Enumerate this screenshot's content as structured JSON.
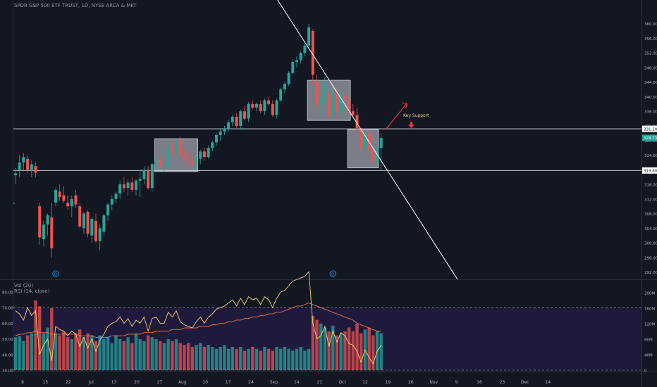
{
  "header": {
    "symbol": "SPDR S&P 500 ETF TRUST, 1D, NYSE ARCA & MKT",
    "vol_label": "Vol (20)",
    "rsi_label": "RSI (14, close)"
  },
  "annotation": {
    "key_support": "Key Support"
  },
  "colors": {
    "background": "#131722",
    "up": "#26a69a",
    "down": "#ef5350",
    "rsi_line": "#f7d56b",
    "rsi_ma_line": "#e8734d",
    "rsi_band": "#2a1e52",
    "levels": "#e0e3eb",
    "box": "#d1d4dc",
    "arrow": "#f23645"
  },
  "chart_data": [
    {
      "type": "candlestick",
      "title": "SPDR S&P 500 ETF TRUST, 1D, NYSE ARCA & MKT",
      "ylim": [
        290,
        363
      ],
      "price_ticks": [
        292,
        296,
        300,
        304,
        308,
        312,
        316,
        320,
        324,
        328,
        332,
        336,
        340,
        344,
        348,
        352,
        356,
        360
      ],
      "x_ticks": [
        "8",
        "15",
        "22",
        "Jul",
        "13",
        "20",
        "27",
        "Aug",
        "10",
        "17",
        "24",
        "Sep",
        "14",
        "21",
        "Oct",
        "12",
        "19",
        "26",
        "Nov",
        "9",
        "16",
        "23",
        "Dec",
        "14"
      ],
      "horizontal_levels": [
        {
          "value": 331.2,
          "label": "331.20"
        },
        {
          "value": 319.8,
          "label": "319.80"
        }
      ],
      "last_price": {
        "value": 328.73,
        "label": "328.73"
      },
      "ohlc": [
        [
          318.5,
          320.5,
          316.0,
          319.0
        ],
        [
          320.0,
          324.0,
          318.0,
          322.0
        ],
        [
          322.0,
          324.5,
          320.0,
          323.5
        ],
        [
          323.0,
          324.0,
          319.0,
          320.0
        ],
        [
          320.0,
          322.5,
          318.0,
          321.5
        ],
        [
          321.0,
          322.0,
          318.0,
          319.2
        ],
        [
          310.0,
          311.0,
          299.5,
          301.5
        ],
        [
          301.0,
          306.0,
          299.0,
          305.0
        ],
        [
          305.0,
          308.0,
          302.0,
          307.5
        ],
        [
          307.0,
          311.0,
          296.0,
          298.5
        ],
        [
          311.0,
          315.0,
          310.0,
          314.5
        ],
        [
          314.0,
          316.0,
          311.5,
          312.5
        ],
        [
          313.0,
          315.5,
          311.0,
          311.5
        ],
        [
          311.0,
          313.0,
          309.0,
          310.0
        ],
        [
          310.0,
          313.0,
          307.0,
          312.0
        ],
        [
          313.0,
          314.5,
          309.5,
          310.5
        ],
        [
          310.0,
          311.0,
          304.0,
          304.5
        ],
        [
          304.0,
          308.5,
          302.5,
          308.0
        ],
        [
          308.5,
          309.0,
          301.5,
          302.5
        ],
        [
          302.0,
          307.0,
          300.0,
          306.5
        ],
        [
          306.0,
          308.0,
          300.0,
          300.5
        ],
        [
          300.5,
          305.0,
          298.0,
          304.0
        ],
        [
          303.0,
          308.0,
          302.0,
          307.5
        ],
        [
          307.5,
          311.0,
          306.0,
          310.5
        ],
        [
          310.5,
          313.0,
          309.0,
          312.0
        ],
        [
          312.0,
          314.0,
          311.0,
          313.5
        ],
        [
          313.5,
          317.0,
          312.0,
          316.0
        ],
        [
          316.0,
          318.0,
          314.0,
          315.0
        ],
        [
          315.0,
          317.5,
          313.0,
          316.5
        ],
        [
          316.5,
          318.0,
          314.0,
          314.5
        ],
        [
          314.5,
          317.5,
          313.0,
          317.0
        ],
        [
          317.0,
          320.0,
          312.5,
          317.5
        ],
        [
          317.5,
          321.0,
          316.0,
          320.0
        ],
        [
          320.0,
          321.0,
          314.5,
          315.0
        ],
        [
          315.0,
          322.0,
          314.0,
          321.5
        ],
        [
          321.5,
          323.0,
          320.0,
          322.5
        ],
        [
          322.5,
          323.5,
          320.5,
          321.0
        ],
        [
          321.0,
          322.0,
          319.5,
          321.0
        ],
        [
          321.0,
          327.0,
          320.5,
          326.0
        ],
        [
          326.0,
          328.0,
          324.0,
          325.0
        ],
        [
          325.0,
          328.5,
          323.5,
          328.0
        ],
        [
          328.0,
          329.0,
          323.0,
          324.0
        ],
        [
          324.0,
          326.0,
          322.5,
          323.0
        ],
        [
          323.0,
          325.0,
          321.0,
          322.5
        ],
        [
          322.5,
          324.0,
          321.0,
          321.5
        ],
        [
          321.5,
          324.0,
          320.0,
          323.0
        ],
        [
          323.0,
          325.5,
          321.5,
          325.0
        ],
        [
          325.0,
          326.0,
          322.5,
          323.5
        ],
        [
          323.5,
          326.5,
          323.0,
          326.0
        ],
        [
          326.0,
          328.0,
          325.0,
          327.5
        ],
        [
          327.5,
          330.0,
          326.5,
          329.5
        ],
        [
          329.5,
          331.0,
          328.0,
          330.5
        ],
        [
          330.5,
          332.0,
          329.5,
          331.0
        ],
        [
          331.0,
          333.5,
          330.5,
          333.0
        ],
        [
          333.0,
          335.0,
          332.0,
          334.5
        ],
        [
          334.5,
          335.5,
          331.5,
          332.0
        ],
        [
          332.0,
          336.5,
          331.0,
          336.0
        ],
        [
          336.0,
          337.5,
          333.5,
          334.0
        ],
        [
          334.0,
          338.5,
          333.0,
          338.0
        ],
        [
          338.0,
          339.0,
          336.5,
          337.0
        ],
        [
          337.0,
          338.5,
          336.0,
          338.0
        ],
        [
          338.0,
          339.0,
          335.5,
          336.0
        ],
        [
          336.0,
          339.5,
          335.0,
          339.0
        ],
        [
          339.0,
          340.0,
          337.5,
          338.0
        ],
        [
          338.0,
          339.0,
          334.5,
          335.0
        ],
        [
          335.0,
          339.5,
          334.0,
          339.0
        ],
        [
          339.0,
          342.5,
          338.5,
          342.0
        ],
        [
          342.0,
          344.0,
          341.0,
          343.5
        ],
        [
          343.5,
          347.0,
          343.0,
          346.5
        ],
        [
          346.5,
          350.0,
          346.0,
          349.5
        ],
        [
          349.5,
          351.0,
          348.0,
          350.0
        ],
        [
          350.0,
          352.5,
          349.0,
          352.0
        ],
        [
          352.0,
          354.5,
          351.0,
          354.0
        ],
        [
          354.0,
          360.0,
          353.5,
          359.0
        ],
        [
          358.0,
          358.5,
          343.5,
          346.0
        ],
        [
          344.0,
          346.0,
          337.0,
          338.0
        ],
        [
          338.0,
          341.0,
          333.5,
          339.5
        ],
        [
          339.0,
          345.5,
          336.0,
          344.0
        ],
        [
          341.0,
          341.5,
          334.5,
          335.0
        ],
        [
          335.0,
          342.0,
          334.0,
          341.0
        ],
        [
          341.0,
          342.0,
          334.0,
          336.0
        ],
        [
          336.0,
          341.5,
          335.0,
          340.5
        ],
        [
          340.5,
          341.5,
          338.0,
          339.0
        ],
        [
          339.0,
          340.0,
          335.0,
          336.0
        ],
        [
          336.0,
          338.0,
          334.5,
          335.0
        ],
        [
          335.0,
          337.0,
          330.0,
          331.0
        ],
        [
          331.0,
          331.5,
          325.0,
          326.0
        ],
        [
          326.0,
          331.0,
          325.5,
          330.0
        ],
        [
          330.0,
          330.5,
          325.0,
          325.5
        ],
        [
          325.5,
          326.0,
          321.0,
          322.0
        ],
        [
          322.0,
          326.5,
          321.0,
          326.0
        ],
        [
          326.0,
          330.0,
          320.0,
          328.73
        ]
      ],
      "events": [
        {
          "index": 10,
          "label": "D"
        },
        {
          "index": 79,
          "label": "D"
        }
      ],
      "trendline": {
        "from": {
          "index": 62,
          "price": 372
        },
        "to": {
          "index": 110,
          "price": 290
        }
      },
      "boxes": [
        {
          "from_index": 35,
          "to_index": 45,
          "top": 328.5,
          "bottom": 319.5
        },
        {
          "from_index": 73,
          "to_index": 83,
          "top": 344.5,
          "bottom": 333.5
        },
        {
          "from_index": 83,
          "to_index": 90,
          "top": 331.0,
          "bottom": 320.5
        }
      ],
      "annotation": {
        "text": "Key Support",
        "arrow": "up",
        "marker": "down"
      }
    },
    {
      "type": "bar+line",
      "title": "Vol (20) / RSI (14, close)",
      "rsi_ticks": [
        30,
        40,
        50,
        60,
        70,
        80
      ],
      "volume_ticks": [
        "0",
        "40M",
        "80M",
        "120M",
        "160M",
        "200M"
      ],
      "rsi_bands": [
        30,
        70
      ],
      "volume_m": [
        85,
        88,
        75,
        90,
        95,
        180,
        165,
        95,
        110,
        160,
        95,
        90,
        100,
        85,
        80,
        95,
        105,
        85,
        95,
        90,
        75,
        90,
        80,
        85,
        70,
        90,
        80,
        75,
        85,
        70,
        95,
        80,
        75,
        90,
        85,
        80,
        75,
        70,
        80,
        75,
        80,
        70,
        65,
        70,
        60,
        65,
        70,
        60,
        65,
        60,
        55,
        60,
        65,
        55,
        60,
        55,
        60,
        50,
        55,
        60,
        55,
        50,
        60,
        55,
        50,
        60,
        55,
        60,
        55,
        50,
        55,
        60,
        50,
        55,
        140,
        130,
        120,
        110,
        100,
        115,
        90,
        95,
        100,
        110,
        100,
        120,
        95,
        105,
        110,
        90,
        100,
        95
      ],
      "rsi": [
        68,
        66,
        62,
        70,
        65,
        68,
        40,
        46,
        50,
        36,
        58,
        56,
        55,
        52,
        55,
        53,
        45,
        51,
        44,
        50,
        42,
        49,
        53,
        58,
        60,
        61,
        64,
        60,
        63,
        58,
        62,
        60,
        64,
        55,
        63,
        64,
        60,
        60,
        67,
        64,
        68,
        61,
        59,
        58,
        57,
        61,
        64,
        60,
        64,
        66,
        69,
        70,
        71,
        73,
        75,
        71,
        76,
        72,
        77,
        75,
        76,
        72,
        77,
        75,
        70,
        76,
        80,
        81,
        84,
        87,
        88,
        89,
        90,
        93,
        60,
        50,
        52,
        58,
        45,
        55,
        48,
        54,
        52,
        47,
        46,
        42,
        35,
        43,
        38,
        34,
        42,
        46
      ],
      "rsi_ma": [
        52,
        53,
        53,
        54,
        54,
        55,
        54,
        54,
        54,
        53,
        53,
        53,
        53,
        53,
        53,
        53,
        52,
        52,
        52,
        52,
        51,
        51,
        51,
        51,
        52,
        52,
        52,
        52,
        53,
        53,
        53,
        53,
        54,
        54,
        54,
        55,
        55,
        55,
        55,
        56,
        56,
        56,
        57,
        57,
        57,
        57,
        58,
        58,
        58,
        59,
        59,
        60,
        60,
        61,
        61,
        62,
        62,
        63,
        63,
        64,
        64,
        65,
        65,
        66,
        66,
        67,
        67,
        68,
        69,
        70,
        71,
        71,
        72,
        73,
        72,
        71,
        70,
        69,
        68,
        67,
        66,
        65,
        64,
        63,
        62,
        60,
        59,
        58,
        57,
        56,
        55,
        55
      ]
    }
  ]
}
